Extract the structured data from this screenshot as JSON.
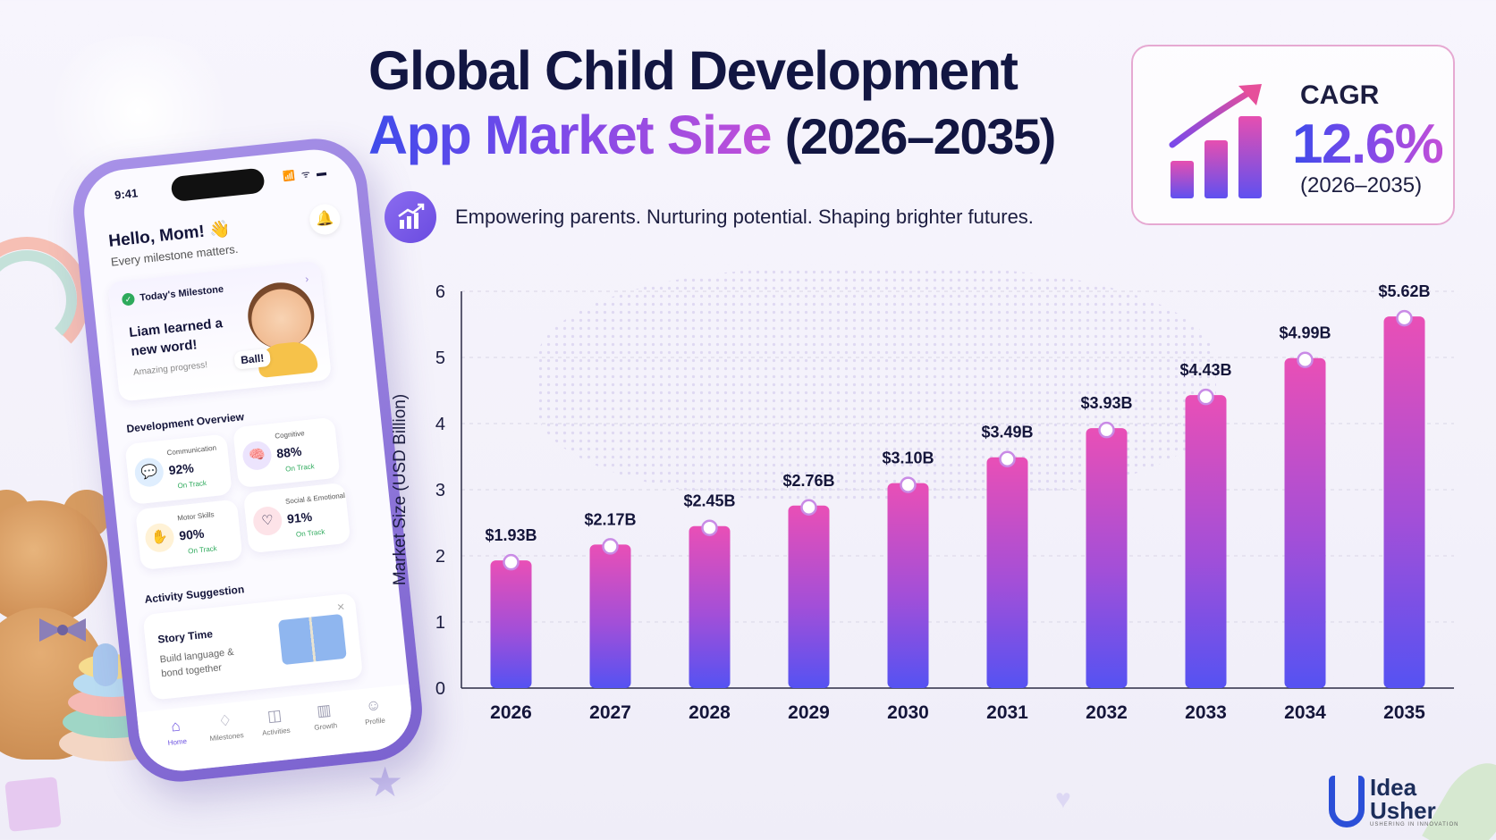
{
  "headline": {
    "line1": "Global Child Development",
    "line2_highlight": "App Market Size",
    "line2_years": "(2026–2035)",
    "tagline": "Empowering parents. Nurturing potential. Shaping brighter futures."
  },
  "cagr": {
    "label": "CAGR",
    "value": "12.6%",
    "period": "(2026–2035)"
  },
  "colors": {
    "title_dark": "#121642",
    "accent_blue": "#3e4bea",
    "accent_purple": "#7a49ea",
    "accent_pink": "#e64fb0",
    "bar_top": "#e74fb8",
    "bar_bottom": "#5a52f0"
  },
  "phone": {
    "time": "9:41",
    "status_icons": "📶 ᯤ ▬",
    "greeting": "Hello, Mom! 👋",
    "greeting_sub": "Every milestone matters.",
    "bell_icon": "bell-icon",
    "milestone": {
      "header": "Today's Milestone",
      "text": "Liam learned a new word!",
      "sub": "Amazing progress!",
      "bubble": "Ball!"
    },
    "overview_title": "Development Overview",
    "overview": [
      {
        "name": "Communication",
        "percent": "92%",
        "status": "On Track",
        "icon": "chat-icon",
        "glyph": "💬",
        "bg": "#dfeefe"
      },
      {
        "name": "Cognitive",
        "percent": "88%",
        "status": "On Track",
        "icon": "brain-icon",
        "glyph": "🧠",
        "bg": "#ece4fd"
      },
      {
        "name": "Motor Skills",
        "percent": "90%",
        "status": "On Track",
        "icon": "hand-icon",
        "glyph": "✋",
        "bg": "#fff2d6"
      },
      {
        "name": "Social & Emotional",
        "percent": "91%",
        "status": "On Track",
        "icon": "heart-icon",
        "glyph": "♡",
        "bg": "#fde3e8"
      }
    ],
    "activity_title": "Activity Suggestion",
    "activity": {
      "title": "Story Time",
      "sub": "Build language & bond together"
    },
    "tabs": [
      {
        "label": "Home",
        "icon": "home-icon",
        "glyph": "⌂"
      },
      {
        "label": "Milestones",
        "icon": "milestone-icon",
        "glyph": "♢"
      },
      {
        "label": "Activities",
        "icon": "activities-icon",
        "glyph": "◫"
      },
      {
        "label": "Growth",
        "icon": "growth-icon",
        "glyph": "▥"
      },
      {
        "label": "Profile",
        "icon": "profile-icon",
        "glyph": "☺"
      }
    ]
  },
  "chart_data": {
    "type": "bar",
    "title": "",
    "xlabel": "",
    "ylabel": "Market Size (USD Billion)",
    "ylim": [
      0,
      6
    ],
    "yticks": [
      0,
      1,
      2,
      3,
      4,
      5,
      6
    ],
    "grid": true,
    "categories": [
      "2026",
      "2027",
      "2028",
      "2029",
      "2030",
      "2031",
      "2032",
      "2033",
      "2034",
      "2035"
    ],
    "values": [
      1.93,
      2.17,
      2.45,
      2.76,
      3.1,
      3.49,
      3.93,
      4.43,
      4.99,
      5.62
    ],
    "value_labels": [
      "$1.93B",
      "$2.17B",
      "$2.45B",
      "$2.76B",
      "$3.10B",
      "$3.49B",
      "$3.93B",
      "$4.43B",
      "$4.99B",
      "$5.62B"
    ]
  },
  "logo": {
    "name_top": "Idea",
    "name_bottom": "Usher",
    "tagline": "USHERING IN INNOVATION"
  }
}
